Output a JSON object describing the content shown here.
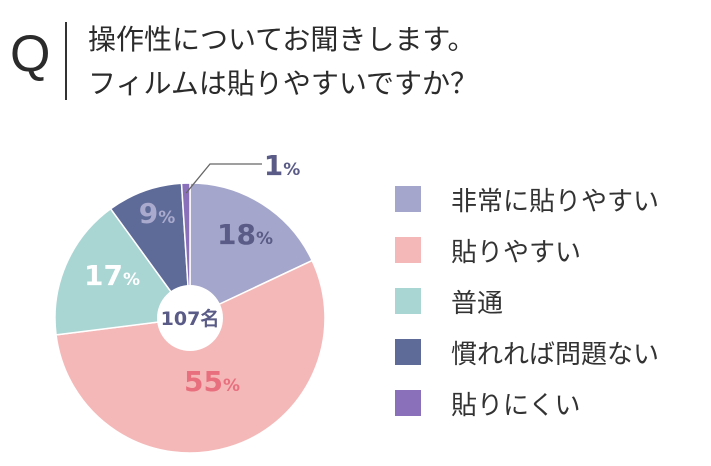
{
  "question": {
    "marker": "Q",
    "line1": "操作性についてお聞きします。",
    "line2": "フィルムは貼りやすいですか？"
  },
  "center_label": "107名",
  "chart_data": {
    "type": "pie",
    "title": "",
    "total": "107名",
    "start_angle_deg": 0,
    "direction": "clockwise",
    "slices": [
      {
        "label": "非常に貼りやすい",
        "value": 18,
        "display": "18",
        "unit": "%",
        "color": "#a5a6cb",
        "label_color": "#5a5b86"
      },
      {
        "label": "貼りやすい",
        "value": 55,
        "display": "55",
        "unit": "%",
        "color": "#f5b8b8",
        "label_color": "#e8707e"
      },
      {
        "label": "普通",
        "value": 17,
        "display": "17",
        "unit": "%",
        "color": "#a9d5d3",
        "label_color": "#ffffff"
      },
      {
        "label": "慣れれば問題ない",
        "value": 9,
        "display": "9",
        "unit": "%",
        "color": "#5e6a98",
        "label_color": "#a9aacd"
      },
      {
        "label": "貼りにくい",
        "value": 1,
        "display": "1",
        "unit": "%",
        "color": "#8a70ba",
        "label_color": "#5a5b86"
      }
    ],
    "legend_position": "right"
  }
}
